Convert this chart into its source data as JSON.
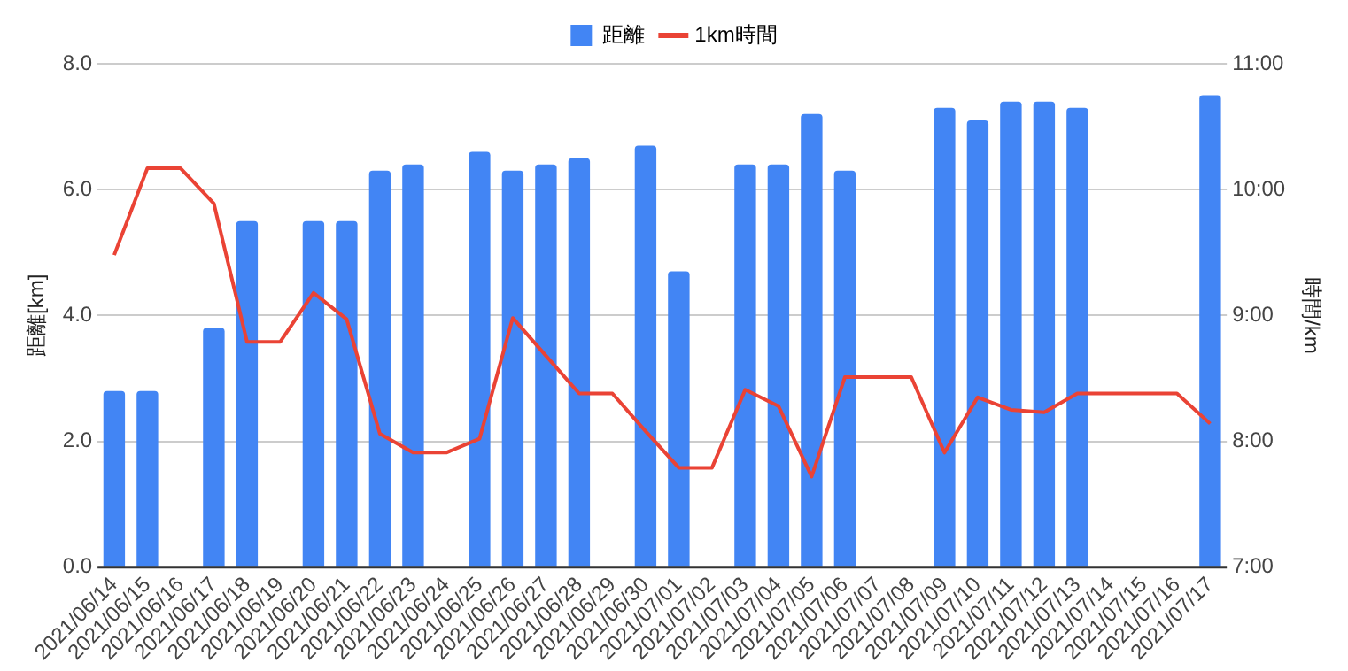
{
  "chart_data": {
    "type": "bar",
    "ylabel": "距離[km]",
    "y2label": "時間/km",
    "categories": [
      "2021/06/14",
      "2021/06/15",
      "2021/06/16",
      "2021/06/17",
      "2021/06/18",
      "2021/06/19",
      "2021/06/20",
      "2021/06/21",
      "2021/06/22",
      "2021/06/23",
      "2021/06/24",
      "2021/06/25",
      "2021/06/26",
      "2021/06/27",
      "2021/06/28",
      "2021/06/29",
      "2021/06/30",
      "2021/07/01",
      "2021/07/02",
      "2021/07/03",
      "2021/07/04",
      "2021/07/05",
      "2021/07/06",
      "2021/07/07",
      "2021/07/08",
      "2021/07/09",
      "2021/07/10",
      "2021/07/11",
      "2021/07/12",
      "2021/07/13",
      "2021/07/14",
      "2021/07/15",
      "2021/07/16",
      "2021/07/17"
    ],
    "series": [
      {
        "name": "距離",
        "color": "#4285f4",
        "values": [
          2.8,
          2.8,
          null,
          3.8,
          5.5,
          null,
          5.5,
          5.5,
          6.3,
          6.4,
          null,
          6.6,
          6.3,
          6.4,
          6.5,
          null,
          6.7,
          4.7,
          null,
          6.4,
          6.4,
          7.2,
          6.3,
          null,
          null,
          7.3,
          7.1,
          7.4,
          7.4,
          7.3,
          null,
          null,
          null,
          7.5
        ]
      },
      {
        "name": "1km時間",
        "type": "line",
        "axis": "y2",
        "color": "#ea4335",
        "values": [
          9.48,
          10.17,
          10.17,
          9.89,
          8.79,
          8.79,
          9.18,
          8.97,
          8.06,
          7.91,
          7.91,
          8.02,
          8.98,
          8.68,
          8.38,
          8.38,
          8.08,
          7.79,
          7.79,
          8.41,
          8.28,
          7.72,
          8.51,
          8.51,
          8.51,
          7.91,
          8.35,
          8.25,
          8.23,
          8.38,
          8.38,
          8.38,
          8.38,
          8.14
        ]
      }
    ],
    "ylim": [
      0,
      8
    ],
    "yticks": [
      {
        "value": 0,
        "label": "0.0"
      },
      {
        "value": 2,
        "label": "2.0"
      },
      {
        "value": 4,
        "label": "4.0"
      },
      {
        "value": 6,
        "label": "6.0"
      },
      {
        "value": 8,
        "label": "8.0"
      }
    ],
    "y2lim": [
      7,
      11
    ],
    "y2ticks": [
      {
        "value": 7,
        "label": "7:00"
      },
      {
        "value": 8,
        "label": "8:00"
      },
      {
        "value": 9,
        "label": "9:00"
      },
      {
        "value": 10,
        "label": "10:00"
      },
      {
        "value": 11,
        "label": "11:00"
      }
    ],
    "grid": "y",
    "legend": "top",
    "marker": "none",
    "line_style": "solid"
  }
}
